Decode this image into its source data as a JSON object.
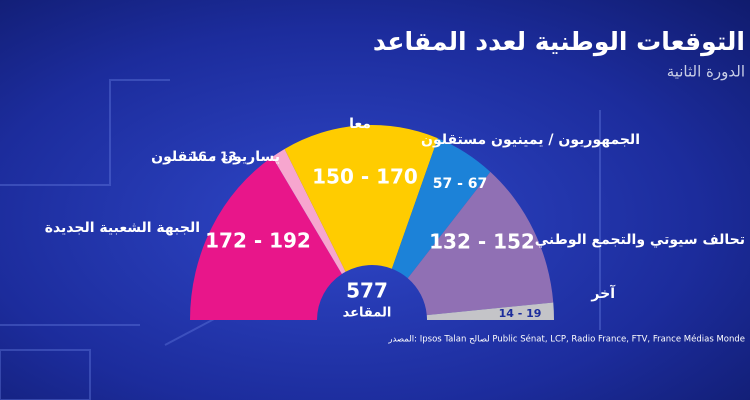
{
  "chart_data": {
    "type": "hemicycle",
    "title": "التوقعات الوطنية لعدد المقاعد",
    "subtitle": "الدورة الثانية",
    "total": 577,
    "total_label": "المقاعد",
    "source": "المصدر: Ipsos Talan لصالح Public Sénat, LCP, Radio France, FTV, France Médias Monde",
    "parties": [
      {
        "name": "الجبهة الشعبية الجديدة",
        "color": "#e8168a",
        "range": [
          172,
          192
        ],
        "range_label": "172 - 192"
      },
      {
        "name": "يساريون مستقلون",
        "color": "#f7a6cf",
        "range": [
          13,
          16
        ],
        "range_label": "16 - 13"
      },
      {
        "name": "معا",
        "color": "#ffcc00",
        "range": [
          150,
          170
        ],
        "range_label": "150 - 170"
      },
      {
        "name": "الجمهوريون / يمينيون مستقلون",
        "color": "#1c82d8",
        "range": [
          57,
          67
        ],
        "range_label": "57 - 67"
      },
      {
        "name": "تحالف سيوتي والتجمع الوطني",
        "color": "#9070b4",
        "range": [
          132,
          152
        ],
        "range_label": "132 - 152"
      },
      {
        "name": "آخر",
        "color": "#c4c4c8",
        "range": [
          14,
          19
        ],
        "range_label": "14 - 19"
      }
    ]
  }
}
